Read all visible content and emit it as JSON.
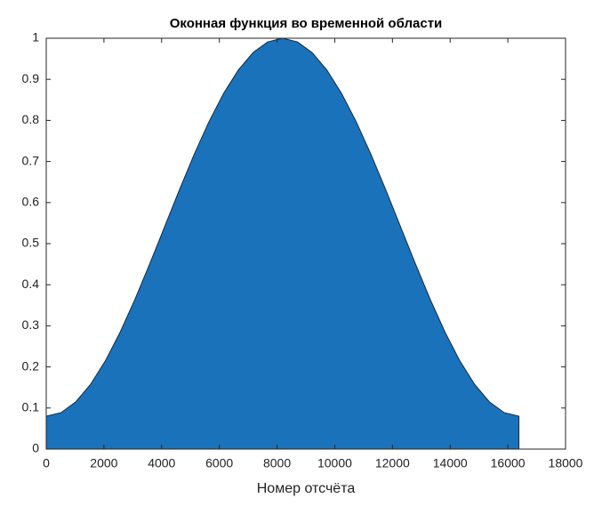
{
  "chart_data": {
    "type": "area",
    "title": "Оконная функция во временной области",
    "x_label": "Номер отсчёта",
    "x": [
      0,
      512,
      1024,
      1536,
      2048,
      2560,
      3072,
      3584,
      4096,
      4608,
      5120,
      5632,
      6144,
      6656,
      7168,
      7680,
      8192,
      8704,
      9216,
      9728,
      10240,
      10752,
      11264,
      11776,
      12288,
      12800,
      13312,
      13824,
      14336,
      14848,
      15360,
      15872,
      16384
    ],
    "values": [
      0.08,
      0.0888,
      0.115,
      0.1575,
      0.2147,
      0.2844,
      0.364,
      0.4503,
      0.54,
      0.6297,
      0.716,
      0.7956,
      0.8653,
      0.9225,
      0.965,
      0.9912,
      1.0,
      0.9912,
      0.965,
      0.9225,
      0.8653,
      0.7956,
      0.716,
      0.6297,
      0.54,
      0.4503,
      0.364,
      0.2844,
      0.2147,
      0.1575,
      0.115,
      0.0888,
      0.08
    ],
    "color": "#1a72bb",
    "edge_color": "#1a2a3a",
    "xlim": [
      0,
      18000
    ],
    "xticks": [
      0,
      2000,
      4000,
      6000,
      8000,
      10000,
      12000,
      14000,
      16000,
      18000
    ],
    "ylim": [
      0,
      1
    ],
    "yticks": [
      0,
      0.1,
      0.2,
      0.3,
      0.4,
      0.5,
      0.6,
      0.7,
      0.8,
      0.9,
      1
    ]
  }
}
